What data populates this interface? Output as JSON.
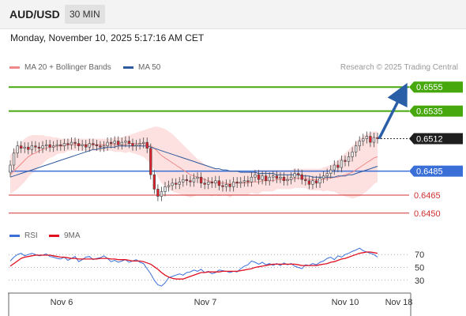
{
  "header": {
    "symbol": "AUD/USD",
    "timeframe": "30 MIN",
    "datetime": "Monday, November 10, 2025 5:17:16 AM CET"
  },
  "legend": {
    "ma20_label": "MA 20 + Bollinger Bands",
    "ma50_label": "MA 50",
    "credit": "Research © 2025 Trading Central"
  },
  "rsi_legend": {
    "rsi_label": "RSI",
    "ma_label": "9MA"
  },
  "colors": {
    "up_candle": "#e8e8e8",
    "down_candle": "#e0202a",
    "resistance": "#46a80c",
    "support": "#d03030",
    "pivot": "#3a6fd8",
    "ma20": "#f08a8a",
    "ma50": "#2e5a9e",
    "bollinger_fill": "#fde0e0",
    "arrow": "#2a5fa8",
    "rsi": "#3a6fd8",
    "rsi_ma": "#e01020"
  },
  "chart_data": {
    "type": "candlestick",
    "x_ticks": [
      "Nov 6",
      "Nov 7",
      "Nov 10",
      "Nov 18"
    ],
    "y_range": [
      0.644,
      0.6565
    ],
    "levels": [
      {
        "value": 0.6555,
        "label": "0.6555",
        "kind": "resistance"
      },
      {
        "value": 0.6535,
        "label": "0.6535",
        "kind": "resistance"
      },
      {
        "value": 0.6512,
        "label": "0.6512",
        "kind": "current"
      },
      {
        "value": 0.6485,
        "label": "0.6485",
        "kind": "pivot"
      },
      {
        "value": 0.6465,
        "label": "0.6465",
        "kind": "support"
      },
      {
        "value": 0.645,
        "label": "0.6450",
        "kind": "support"
      }
    ],
    "close": [
      0.649,
      0.65,
      0.6506,
      0.6504,
      0.6505,
      0.6503,
      0.6506,
      0.6505,
      0.6504,
      0.6506,
      0.6507,
      0.6505,
      0.6506,
      0.6507,
      0.6506,
      0.6508,
      0.6507,
      0.6509,
      0.6508,
      0.6506,
      0.6507,
      0.6505,
      0.6508,
      0.6507,
      0.6506,
      0.6505,
      0.6506,
      0.6509,
      0.6508,
      0.651,
      0.6507,
      0.6509,
      0.651,
      0.6508,
      0.6506,
      0.6507,
      0.6508,
      0.6509,
      0.6504,
      0.6482,
      0.647,
      0.6464,
      0.6468,
      0.6472,
      0.6473,
      0.6475,
      0.6474,
      0.6476,
      0.6478,
      0.6477,
      0.6476,
      0.6479,
      0.648,
      0.6475,
      0.6474,
      0.6476,
      0.6475,
      0.6477,
      0.6473,
      0.6472,
      0.6474,
      0.6472,
      0.6476,
      0.6475,
      0.6476,
      0.6477,
      0.6476,
      0.648,
      0.6482,
      0.6478,
      0.6481,
      0.6477,
      0.648,
      0.6481,
      0.6479,
      0.648,
      0.6477,
      0.6478,
      0.648,
      0.6483,
      0.6482,
      0.6478,
      0.6477,
      0.6474,
      0.6477,
      0.6475,
      0.6479,
      0.6481,
      0.6483,
      0.6486,
      0.649,
      0.6488,
      0.6494,
      0.6493,
      0.6497,
      0.6501,
      0.6506,
      0.651,
      0.6512,
      0.6514,
      0.6509,
      0.6513,
      0.6512
    ],
    "ma20": [
      0.6482,
      0.6485,
      0.6488,
      0.6491,
      0.6494,
      0.6497,
      0.6499,
      0.65,
      0.6502,
      0.6503,
      0.6504,
      0.6505,
      0.6505,
      0.6506,
      0.6506,
      0.6506,
      0.6507,
      0.6507,
      0.6507,
      0.6507,
      0.6507,
      0.6507,
      0.6507,
      0.6507,
      0.6507,
      0.6507,
      0.6507,
      0.6507,
      0.6507,
      0.6507,
      0.6507,
      0.6507,
      0.6507,
      0.6508,
      0.6508,
      0.6508,
      0.6508,
      0.6508,
      0.6507,
      0.6506,
      0.6504,
      0.6501,
      0.6498,
      0.6496,
      0.6494,
      0.6492,
      0.649,
      0.6488,
      0.6486,
      0.6484,
      0.6482,
      0.6481,
      0.648,
      0.6479,
      0.6478,
      0.6477,
      0.6476,
      0.6476,
      0.6475,
      0.6475,
      0.6475,
      0.6474,
      0.6475,
      0.6475,
      0.6475,
      0.6475,
      0.6475,
      0.6476,
      0.6476,
      0.6476,
      0.6477,
      0.6477,
      0.6477,
      0.6477,
      0.6478,
      0.6478,
      0.6478,
      0.6478,
      0.6478,
      0.6479,
      0.6479,
      0.6479,
      0.6479,
      0.6478,
      0.6478,
      0.6478,
      0.6478,
      0.6478,
      0.6479,
      0.6479,
      0.648,
      0.648,
      0.6481,
      0.6482,
      0.6483,
      0.6484,
      0.6486,
      0.6488,
      0.649,
      0.6492,
      0.6494,
      0.6496,
      0.6497
    ],
    "ma50": [
      0.648,
      0.6481,
      0.6482,
      0.6483,
      0.6484,
      0.6485,
      0.6486,
      0.6487,
      0.6488,
      0.6489,
      0.649,
      0.6491,
      0.6492,
      0.6493,
      0.6494,
      0.6495,
      0.6496,
      0.6497,
      0.6498,
      0.6499,
      0.65,
      0.6501,
      0.6502,
      0.6503,
      0.6503,
      0.6504,
      0.6504,
      0.6505,
      0.6505,
      0.6505,
      0.6506,
      0.6506,
      0.6506,
      0.6506,
      0.6506,
      0.6506,
      0.6506,
      0.6506,
      0.6506,
      0.6505,
      0.6504,
      0.6503,
      0.6502,
      0.6501,
      0.65,
      0.6499,
      0.6498,
      0.6497,
      0.6496,
      0.6495,
      0.6494,
      0.6493,
      0.6492,
      0.6491,
      0.649,
      0.6489,
      0.6488,
      0.6487,
      0.6487,
      0.6486,
      0.6486,
      0.6485,
      0.6485,
      0.6485,
      0.6484,
      0.6484,
      0.6484,
      0.6484,
      0.6484,
      0.6483,
      0.6483,
      0.6483,
      0.6483,
      0.6483,
      0.6482,
      0.6482,
      0.6482,
      0.6482,
      0.6482,
      0.6482,
      0.6482,
      0.6481,
      0.6481,
      0.6481,
      0.648,
      0.648,
      0.648,
      0.648,
      0.648,
      0.648,
      0.648,
      0.6481,
      0.6481,
      0.6481,
      0.6482,
      0.6482,
      0.6483,
      0.6484,
      0.6485,
      0.6486,
      0.6487,
      0.6488,
      0.6489
    ],
    "bb_upper": [
      0.6498,
      0.6502,
      0.6506,
      0.6509,
      0.6512,
      0.6514,
      0.6515,
      0.6515,
      0.6515,
      0.6515,
      0.6514,
      0.6514,
      0.6513,
      0.6513,
      0.6512,
      0.6512,
      0.6512,
      0.6512,
      0.6512,
      0.6512,
      0.6512,
      0.6512,
      0.6512,
      0.6512,
      0.6512,
      0.6512,
      0.6512,
      0.6512,
      0.6512,
      0.6513,
      0.6513,
      0.6513,
      0.6514,
      0.6515,
      0.6516,
      0.6517,
      0.6518,
      0.6519,
      0.652,
      0.6521,
      0.6522,
      0.6522,
      0.6521,
      0.652,
      0.6518,
      0.6516,
      0.6513,
      0.651,
      0.6507,
      0.6504,
      0.6501,
      0.6498,
      0.6495,
      0.6493,
      0.6491,
      0.6489,
      0.6488,
      0.6487,
      0.6486,
      0.6485,
      0.6485,
      0.6485,
      0.6485,
      0.6485,
      0.6485,
      0.6485,
      0.6485,
      0.6485,
      0.6486,
      0.6486,
      0.6486,
      0.6486,
      0.6486,
      0.6486,
      0.6486,
      0.6486,
      0.6486,
      0.6486,
      0.6486,
      0.6487,
      0.6487,
      0.6487,
      0.6487,
      0.6487,
      0.6487,
      0.6487,
      0.6487,
      0.6488,
      0.6489,
      0.649,
      0.6492,
      0.6494,
      0.6497,
      0.65,
      0.6503,
      0.6506,
      0.6509,
      0.6512,
      0.6514,
      0.6516,
      0.6517,
      0.6518,
      0.6518
    ],
    "bb_lower": [
      0.6466,
      0.6468,
      0.647,
      0.6473,
      0.6476,
      0.648,
      0.6483,
      0.6485,
      0.6489,
      0.6491,
      0.6494,
      0.6496,
      0.6497,
      0.6499,
      0.65,
      0.65,
      0.6502,
      0.6502,
      0.6502,
      0.6502,
      0.6502,
      0.6502,
      0.6502,
      0.6502,
      0.6502,
      0.6502,
      0.6502,
      0.6502,
      0.6502,
      0.6501,
      0.6501,
      0.6501,
      0.65,
      0.6501,
      0.65,
      0.6499,
      0.6498,
      0.6497,
      0.6494,
      0.6491,
      0.6486,
      0.648,
      0.6475,
      0.6472,
      0.647,
      0.6468,
      0.6467,
      0.6466,
      0.6465,
      0.6464,
      0.6463,
      0.6464,
      0.6465,
      0.6465,
      0.6465,
      0.6465,
      0.6464,
      0.6465,
      0.6464,
      0.6465,
      0.6465,
      0.6463,
      0.6465,
      0.6465,
      0.6465,
      0.6465,
      0.6465,
      0.6467,
      0.6466,
      0.6466,
      0.6468,
      0.6468,
      0.6468,
      0.6468,
      0.647,
      0.647,
      0.647,
      0.647,
      0.647,
      0.6471,
      0.6471,
      0.6471,
      0.6471,
      0.6469,
      0.6469,
      0.6469,
      0.6469,
      0.6468,
      0.6469,
      0.6468,
      0.6468,
      0.6466,
      0.6465,
      0.6464,
      0.6463,
      0.6462,
      0.6463,
      0.6464,
      0.6466,
      0.6468,
      0.6471,
      0.6474,
      0.6476
    ],
    "forecast_arrow": {
      "from": 0.6512,
      "to": 0.6555
    },
    "rsi": {
      "ticks": [
        70,
        50,
        30
      ],
      "y_range": [
        15,
        85
      ],
      "rsi": [
        60,
        66,
        70,
        72,
        68,
        70,
        72,
        70,
        68,
        69,
        71,
        67,
        66,
        64,
        63,
        66,
        61,
        64,
        67,
        59,
        62,
        66,
        67,
        62,
        64,
        65,
        68,
        64,
        59,
        61,
        58,
        60,
        62,
        58,
        60,
        62,
        58,
        56,
        48,
        40,
        30,
        23,
        21,
        26,
        34,
        36,
        38,
        40,
        38,
        42,
        43,
        46,
        44,
        47,
        42,
        44,
        40,
        42,
        46,
        45,
        44,
        42,
        44,
        43,
        48,
        52,
        54,
        60,
        58,
        55,
        58,
        54,
        56,
        53,
        56,
        53,
        57,
        54,
        56,
        52,
        50,
        48,
        54,
        53,
        56,
        54,
        58,
        60,
        64,
        66,
        62,
        68,
        66,
        70,
        72,
        75,
        77,
        80,
        76,
        74,
        72,
        70,
        66
      ],
      "ma": [
        52,
        56,
        60,
        64,
        66,
        67,
        68,
        69,
        69,
        69,
        69,
        69,
        68,
        67,
        66,
        66,
        65,
        64,
        64,
        63,
        63,
        63,
        63,
        63,
        63,
        64,
        64,
        64,
        63,
        63,
        62,
        62,
        62,
        61,
        60,
        60,
        60,
        59,
        57,
        55,
        51,
        47,
        42,
        38,
        35,
        33,
        32,
        32,
        32,
        34,
        36,
        38,
        40,
        42,
        42,
        43,
        43,
        43,
        43,
        44,
        44,
        44,
        44,
        44,
        45,
        46,
        47,
        48,
        50,
        51,
        52,
        53,
        54,
        55,
        55,
        55,
        55,
        55,
        55,
        55,
        54,
        53,
        53,
        53,
        53,
        53,
        54,
        55,
        56,
        58,
        59,
        61,
        63,
        64,
        66,
        68,
        70,
        72,
        73,
        74,
        74,
        73,
        72
      ]
    }
  }
}
